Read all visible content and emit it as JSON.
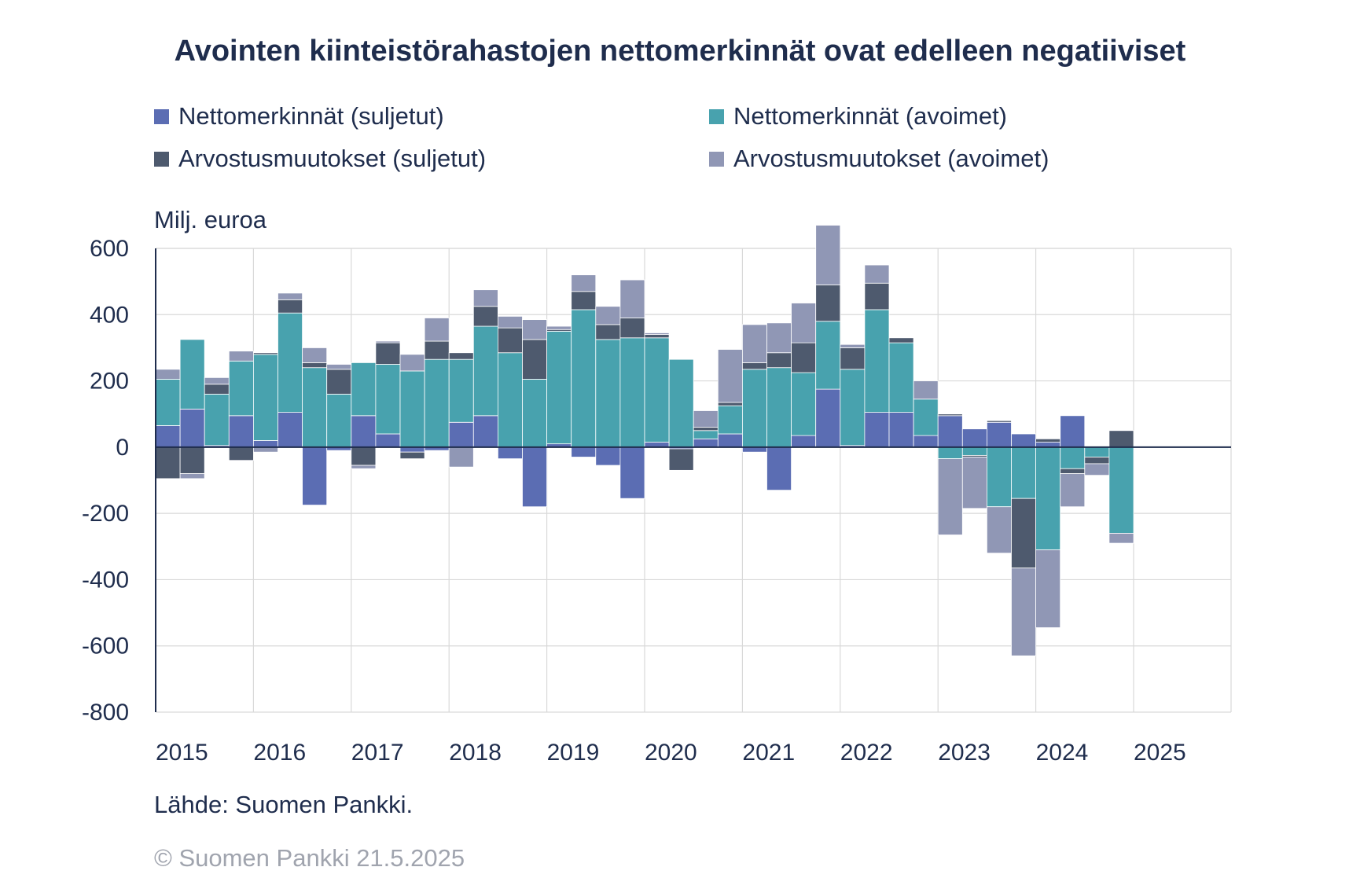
{
  "title": "Avointen kiinteistörahastojen nettomerkinnät ovat edelleen negatiiviset",
  "unit_label": "Milj. euroa",
  "source": "Lähde: Suomen Pankki.",
  "copyright": "© Suomen Pankki 21.5.2025",
  "legend": [
    {
      "label": "Nettomerkinnät (suljetut)",
      "color": "#5b6db3"
    },
    {
      "label": "Nettomerkinnät (avoimet)",
      "color": "#48a2ae"
    },
    {
      "label": "Arvostusmuutokset (suljetut)",
      "color": "#4e5a6e"
    },
    {
      "label": "Arvostusmuutokset (avoimet)",
      "color": "#9097b5"
    }
  ],
  "chart_data": {
    "type": "bar",
    "stacked": true,
    "ylim": [
      -800,
      600
    ],
    "yticks": [
      600,
      400,
      200,
      0,
      -200,
      -400,
      -600,
      -800
    ],
    "xticks": [
      "2015",
      "2016",
      "2017",
      "2018",
      "2019",
      "2020",
      "2021",
      "2022",
      "2023",
      "2024",
      "2025"
    ],
    "grid": true,
    "legend_position": "top",
    "categories": [
      "2015Q1",
      "2015Q2",
      "2015Q3",
      "2015Q4",
      "2016Q1",
      "2016Q2",
      "2016Q3",
      "2016Q4",
      "2017Q1",
      "2017Q2",
      "2017Q3",
      "2017Q4",
      "2018Q1",
      "2018Q2",
      "2018Q3",
      "2018Q4",
      "2019Q1",
      "2019Q2",
      "2019Q3",
      "2019Q4",
      "2020Q1",
      "2020Q2",
      "2020Q3",
      "2020Q4",
      "2021Q1",
      "2021Q2",
      "2021Q3",
      "2021Q4",
      "2022Q1",
      "2022Q2",
      "2022Q3",
      "2022Q4",
      "2023Q1",
      "2023Q2",
      "2023Q3",
      "2023Q4",
      "2024Q1",
      "2024Q2",
      "2024Q3",
      "2024Q4",
      "2025Q1"
    ],
    "series": [
      {
        "name": "Nettomerkinnät (suljetut)",
        "color": "#5b6db3",
        "values": [
          65,
          115,
          5,
          95,
          20,
          105,
          -175,
          -10,
          95,
          40,
          -15,
          -10,
          75,
          95,
          -35,
          -180,
          10,
          -30,
          -55,
          -155,
          15,
          -5,
          25,
          40,
          -15,
          -130,
          35,
          175,
          5,
          105,
          105,
          35,
          95,
          55,
          75,
          40,
          15,
          95,
          0,
          0,
          0
        ]
      },
      {
        "name": "Nettomerkinnät (avoimet)",
        "color": "#48a2ae",
        "values": [
          140,
          210,
          155,
          165,
          260,
          300,
          240,
          160,
          160,
          210,
          230,
          265,
          190,
          270,
          285,
          205,
          340,
          415,
          325,
          330,
          315,
          265,
          25,
          85,
          235,
          240,
          190,
          205,
          230,
          310,
          210,
          110,
          -35,
          -25,
          -180,
          -155,
          -310,
          -65,
          -30,
          -260,
          0
        ]
      },
      {
        "name": "Arvostusmuutokset (suljetut)",
        "color": "#4e5a6e",
        "values": [
          -95,
          -80,
          30,
          -40,
          5,
          40,
          15,
          75,
          -55,
          65,
          -20,
          55,
          20,
          60,
          75,
          120,
          5,
          55,
          45,
          60,
          10,
          -65,
          10,
          10,
          20,
          45,
          90,
          110,
          65,
          80,
          15,
          0,
          5,
          -5,
          5,
          -210,
          10,
          -15,
          -20,
          50,
          0
        ]
      },
      {
        "name": "Arvostusmuutokset (avoimet)",
        "color": "#9097b5",
        "values": [
          30,
          -15,
          20,
          30,
          -15,
          20,
          45,
          15,
          -10,
          5,
          50,
          70,
          -60,
          50,
          35,
          60,
          10,
          50,
          55,
          115,
          5,
          0,
          50,
          160,
          115,
          90,
          120,
          180,
          10,
          55,
          0,
          55,
          -230,
          -155,
          -140,
          -265,
          -235,
          -100,
          -35,
          -30,
          0
        ]
      }
    ]
  }
}
